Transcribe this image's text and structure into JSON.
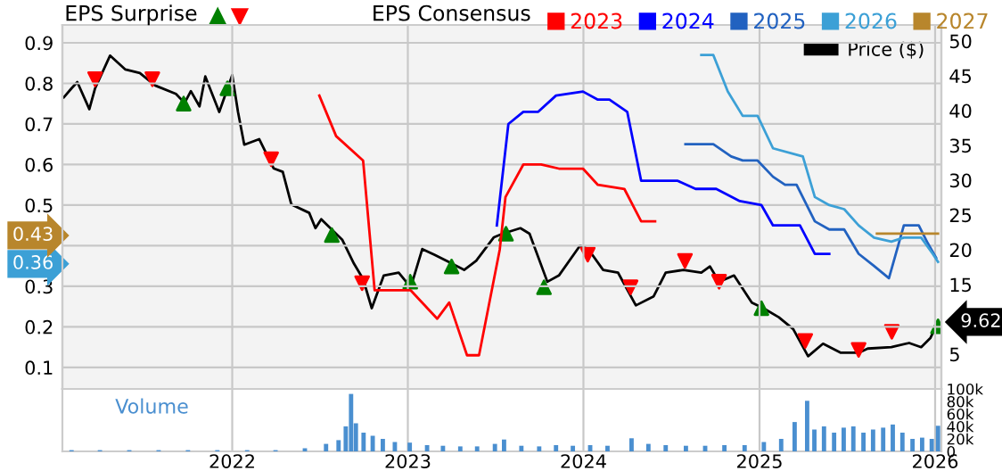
{
  "chart_data": [
    {
      "type": "line",
      "title": "EPS Surprise",
      "legend_title": "EPS Consensus",
      "legend": "top",
      "grid": true,
      "tick_labels": "y",
      "xlim": [
        "2021-01-13",
        "2026-01-14"
      ],
      "xticks": [
        "2022",
        "2023",
        "2024",
        "2025",
        "2026"
      ],
      "ylim": [
        0.047,
        0.944
      ],
      "yticks": [
        0.1,
        0.2,
        0.3,
        0.36,
        {
          "value": 0.4,
          "label": null
        },
        0.43,
        0.5,
        0.6,
        0.7,
        0.8,
        0.9
      ],
      "y2lim": [
        0,
        52.3
      ],
      "y2ticks": [
        5,
        15,
        20,
        25,
        30,
        35,
        40,
        45,
        50
      ],
      "series": [
        {
          "name": "Price ($)",
          "type": "line",
          "axis": "y2",
          "color": "#000000",
          "x": [
            "2021-01-16",
            "2021-02-01",
            "2021-02-13",
            "2021-03-10",
            "2021-03-22",
            "2021-04-22",
            "2021-05-24",
            "2021-06-23",
            "2021-07-25",
            "2021-09-06",
            "2021-09-24",
            "2021-10-07",
            "2021-10-25",
            "2021-11-06",
            "2021-12-05",
            "2022-01-01",
            "2022-01-13",
            "2022-01-26",
            "2022-02-26",
            "2022-03-28",
            "2022-04-16",
            "2022-05-04",
            "2022-06-10",
            "2022-06-23",
            "2022-07-05",
            "2022-08-18",
            "2022-09-11",
            "2022-09-30",
            "2022-10-18",
            "2022-11-12",
            "2022-12-13",
            "2023-01-07",
            "2023-01-31",
            "2023-02-25",
            "2023-04-03",
            "2023-04-28",
            "2023-05-23",
            "2023-06-29",
            "2023-07-17",
            "2023-08-23",
            "2023-09-11",
            "2023-10-18",
            "2023-11-11",
            "2023-12-25",
            "2024-01-11",
            "2024-02-11",
            "2024-03-13",
            "2024-04-19",
            "2024-05-26",
            "2024-06-20",
            "2024-07-27",
            "2024-09-02",
            "2024-09-20",
            "2024-10-09",
            "2024-11-09",
            "2024-12-16",
            "2025-01-09",
            "2025-02-10",
            "2025-03-12",
            "2025-04-12",
            "2025-05-13",
            "2025-06-19",
            "2025-07-26",
            "2025-08-14",
            "2025-10-02",
            "2025-11-08",
            "2025-12-03",
            "2025-12-22",
            "2026-01-07"
          ],
          "values": [
            41.9,
            43.2,
            44.1,
            40.2,
            43.2,
            47.9,
            45.9,
            45.4,
            43.6,
            42.4,
            41.1,
            42.8,
            40.6,
            44.9,
            39.8,
            45.1,
            39.8,
            35.1,
            35.9,
            31.7,
            31.2,
            26.5,
            25.3,
            23.1,
            24.4,
            21.4,
            18.0,
            15.8,
            11.6,
            16.3,
            16.7,
            14.6,
            20.1,
            19.3,
            18.0,
            17.1,
            18.4,
            21.8,
            22.3,
            23.1,
            22.3,
            15.4,
            16.3,
            20.6,
            20.1,
            17.1,
            16.7,
            12.0,
            13.3,
            16.7,
            17.1,
            16.7,
            17.6,
            15.4,
            16.3,
            12.4,
            11.6,
            10.3,
            8.6,
            4.7,
            6.5,
            5.2,
            5.2,
            5.8,
            6.0,
            6.6,
            6.0,
            7.3,
            9.62
          ],
          "value_labels": [
            null,
            null,
            null,
            null,
            null,
            null,
            null,
            null,
            null,
            null,
            null,
            null,
            null,
            null,
            null,
            null,
            null,
            null,
            null,
            null,
            null,
            null,
            null,
            null,
            null,
            null,
            null,
            null,
            null,
            null,
            null,
            null,
            null,
            null,
            null,
            null,
            null,
            null,
            null,
            null,
            null,
            null,
            null,
            null,
            null,
            null,
            null,
            null,
            null,
            null,
            null,
            null,
            null,
            null,
            null,
            null,
            null,
            null,
            null,
            null,
            null,
            null,
            null,
            null,
            null,
            null,
            null,
            null,
            "9.62"
          ]
        },
        {
          "name": "2023",
          "type": "line",
          "axis": "y",
          "color": "#ff0000",
          "x": [
            "2022-07-01",
            "2022-08-05",
            "2022-09-30",
            "2022-10-24",
            "2023-01-07",
            "2023-03-03",
            "2023-03-28",
            "2023-05-04",
            "2023-05-29",
            "2023-07-11",
            "2023-07-23",
            "2023-08-29",
            "2023-10-05",
            "2023-11-11",
            "2023-12-31",
            "2024-01-31",
            "2024-03-26",
            "2024-04-30",
            "2024-05-29"
          ],
          "values": [
            0.77,
            0.67,
            0.61,
            0.29,
            0.29,
            0.22,
            0.26,
            0.13,
            0.13,
            0.39,
            0.52,
            0.6,
            0.6,
            0.59,
            0.59,
            0.55,
            0.54,
            0.46,
            0.46
          ]
        },
        {
          "name": "2024",
          "type": "line",
          "axis": "y",
          "color": "#0000ff",
          "x": [
            "2023-07-05",
            "2023-07-29",
            "2023-08-29",
            "2023-09-29",
            "2023-11-05",
            "2023-12-31",
            "2024-01-31",
            "2024-02-24",
            "2024-04-01",
            "2024-04-30",
            "2024-07-15",
            "2024-08-21",
            "2024-10-03",
            "2024-11-21",
            "2025-01-05",
            "2025-01-29",
            "2025-03-26",
            "2025-04-26",
            "2025-05-26"
          ],
          "values": [
            0.45,
            0.7,
            0.73,
            0.73,
            0.77,
            0.78,
            0.76,
            0.76,
            0.73,
            0.56,
            0.56,
            0.54,
            0.54,
            0.51,
            0.5,
            0.45,
            0.45,
            0.38,
            0.38
          ]
        },
        {
          "name": "2025",
          "type": "line",
          "axis": "y",
          "color": "#2262c0",
          "x": [
            "2024-07-31",
            "2024-09-27",
            "2024-11-03",
            "2024-11-27",
            "2024-12-28",
            "2025-01-29",
            "2025-02-23",
            "2025-03-19",
            "2025-04-26",
            "2025-05-26",
            "2025-06-26",
            "2025-07-26",
            "2025-08-27",
            "2025-09-27",
            "2025-10-28",
            "2025-11-28",
            "2025-12-15",
            "2026-01-03"
          ],
          "values": [
            0.65,
            0.65,
            0.62,
            0.61,
            0.61,
            0.57,
            0.55,
            0.55,
            0.46,
            0.44,
            0.44,
            0.38,
            0.35,
            0.32,
            0.45,
            0.45,
            0.41,
            0.37
          ]
        },
        {
          "name": "2026",
          "type": "line",
          "axis": "y",
          "color": "#3ca0d6",
          "x": [
            "2024-09-02",
            "2024-09-27",
            "2024-10-27",
            "2024-11-27",
            "2024-12-28",
            "2025-01-29",
            "2025-04-01",
            "2025-04-26",
            "2025-05-26",
            "2025-06-26",
            "2025-07-26",
            "2025-08-27",
            "2025-10-02",
            "2025-10-28",
            "2025-12-03",
            "2025-12-27",
            "2026-01-07"
          ],
          "values": [
            0.87,
            0.87,
            0.78,
            0.72,
            0.72,
            0.64,
            0.62,
            0.52,
            0.5,
            0.49,
            0.45,
            0.42,
            0.41,
            0.42,
            0.42,
            0.38,
            0.36
          ]
        },
        {
          "name": "2027",
          "type": "line",
          "axis": "y",
          "color": "#b8862c",
          "x": [
            "2025-09-02",
            "2026-01-07"
          ],
          "values": [
            0.43,
            0.43
          ]
        },
        {
          "type": "scatter",
          "axis": "y2",
          "color": "#008000",
          "marker": "triangle",
          "x": [
            "2021-09-22",
            "2021-12-22",
            "2022-07-27",
            "2023-01-06",
            "2023-04-02",
            "2023-07-24",
            "2023-10-11",
            "2025-01-05",
            "2026-01-07"
          ],
          "values": [
            41.0,
            43.2,
            22.1,
            15.4,
            17.6,
            22.3,
            14.6,
            11.6,
            9.0
          ]
        },
        {
          "type": "scatter",
          "axis": "y2",
          "color": "#ff0000",
          "marker": "triangle_down",
          "x": [
            "2021-03-22",
            "2021-07-19",
            "2022-03-23",
            "2022-09-28",
            "2024-01-10",
            "2024-04-08",
            "2024-07-30",
            "2024-10-09",
            "2025-04-06",
            "2025-07-26",
            "2025-10-03"
          ],
          "values": [
            44.5,
            44.5,
            33.0,
            15.2,
            19.3,
            14.6,
            18.4,
            15.4,
            6.9,
            5.6,
            8.2
          ]
        }
      ]
    },
    {
      "type": "bar",
      "title": "Volume",
      "grid": "x",
      "color": "#4a8fd0",
      "xlim": [
        "2021-01-13",
        "2026-01-14"
      ],
      "xticks": [
        "2022",
        "2023",
        "2024",
        "2025",
        "2026"
      ],
      "ylim": [
        0,
        100000
      ],
      "yticks": [
        0,
        {
          "value": 20000,
          "label": "20k"
        },
        {
          "value": 40000,
          "label": "40k"
        },
        {
          "value": 60000,
          "label": "60k"
        },
        {
          "value": 80000,
          "label": "80k"
        },
        {
          "value": 100000,
          "label": "100k"
        }
      ],
      "x": [
        "2021-02-01",
        "2021-04-01",
        "2021-06-01",
        "2021-08-01",
        "2021-10-01",
        "2021-12-01",
        "2022-02-01",
        "2022-04-01",
        "2022-06-01",
        "2022-07-15",
        "2022-08-10",
        "2022-08-25",
        "2022-09-05",
        "2022-09-15",
        "2022-10-01",
        "2022-10-20",
        "2022-11-10",
        "2022-12-05",
        "2023-01-05",
        "2023-02-10",
        "2023-03-15",
        "2023-04-20",
        "2023-05-25",
        "2023-07-01",
        "2023-07-20",
        "2023-08-25",
        "2023-10-01",
        "2023-11-05",
        "2023-12-10",
        "2024-01-15",
        "2024-02-20",
        "2024-04-10",
        "2024-05-15",
        "2024-06-20",
        "2024-08-01",
        "2024-09-10",
        "2024-10-20",
        "2024-12-01",
        "2025-01-10",
        "2025-02-15",
        "2025-03-15",
        "2025-04-10",
        "2025-04-25",
        "2025-05-15",
        "2025-06-05",
        "2025-06-25",
        "2025-07-15",
        "2025-08-05",
        "2025-08-25",
        "2025-09-15",
        "2025-10-05",
        "2025-10-25",
        "2025-11-15",
        "2025-12-05",
        "2025-12-25",
        "2026-01-07"
      ],
      "values": [
        2000,
        2000,
        2000,
        2000,
        2000,
        2000,
        2000,
        2000,
        5000,
        12000,
        18000,
        40000,
        92000,
        45000,
        30000,
        25000,
        20000,
        15000,
        14000,
        10000,
        9000,
        8000,
        8000,
        12000,
        19000,
        9000,
        8000,
        10000,
        9000,
        10000,
        9000,
        21000,
        12000,
        10000,
        9000,
        9000,
        10000,
        10000,
        15000,
        20000,
        47000,
        81000,
        35000,
        40000,
        30000,
        38000,
        40000,
        30000,
        35000,
        38000,
        43000,
        30000,
        20000,
        22000,
        20000,
        41000
      ]
    }
  ]
}
